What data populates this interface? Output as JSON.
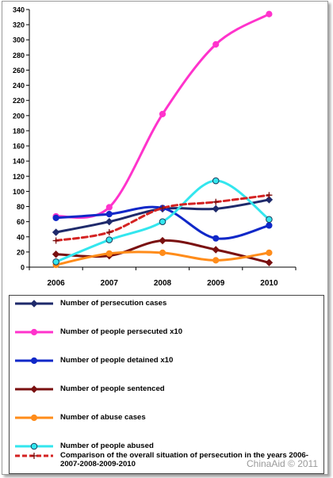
{
  "chart_data": {
    "type": "line",
    "title": "",
    "xlabel": "",
    "ylabel": "",
    "categories": [
      "2006",
      "2007",
      "2008",
      "2009",
      "2010"
    ],
    "ylim": [
      0,
      340
    ],
    "yticks": [
      0,
      20,
      40,
      60,
      80,
      100,
      120,
      140,
      160,
      180,
      200,
      220,
      240,
      260,
      280,
      300,
      320,
      340
    ],
    "grid": false,
    "legend_position": "bottom",
    "series": [
      {
        "name": "Number of persecution cases",
        "values": [
          46,
          60,
          77,
          77,
          89
        ],
        "color": "#1f2a6b",
        "marker": "diamond",
        "dash": false
      },
      {
        "name": "Number of people persecuted x10",
        "values": [
          67,
          79,
          202,
          294,
          334
        ],
        "color": "#ff33cc",
        "marker": "circle",
        "dash": false
      },
      {
        "name": "Number of people detained x10",
        "values": [
          65,
          70,
          78,
          38,
          55
        ],
        "color": "#1028c8",
        "marker": "circle",
        "dash": false
      },
      {
        "name": "Number of people sentenced",
        "values": [
          17,
          15,
          35,
          23,
          6
        ],
        "color": "#7a1010",
        "marker": "diamond",
        "dash": false
      },
      {
        "name": "Number of abuse cases",
        "values": [
          3,
          18,
          19,
          9,
          19
        ],
        "color": "#ff8c1a",
        "marker": "circle",
        "dash": false
      },
      {
        "name": "Number of people abused",
        "values": [
          7,
          36,
          60,
          114,
          63
        ],
        "color": "#33e6ee",
        "marker": "open-circle",
        "dash": false
      },
      {
        "name": "Comparison of the overall situation of persecution in the years 2006-2007-2008-2009-2010",
        "values": [
          35,
          46,
          78,
          86,
          95
        ],
        "color": "#d42222",
        "marker": "plus",
        "dash": true
      }
    ]
  },
  "watermark": "ChinaAid © 2011"
}
